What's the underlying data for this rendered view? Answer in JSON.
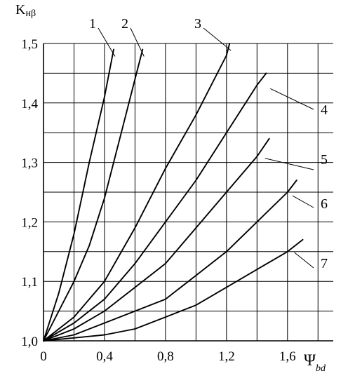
{
  "chart_data": {
    "type": "line",
    "ylabel": "Kнβ",
    "xlabel": "ψbd",
    "ylabel_main": "K",
    "ylabel_sub": "нβ",
    "xlabel_main": "Ψ",
    "xlabel_sub": "bd",
    "xlim": [
      0,
      1.9
    ],
    "ylim": [
      1.0,
      1.5
    ],
    "x_ticks": [
      0,
      0.4,
      0.8,
      1.2,
      1.6
    ],
    "x_tick_labels": [
      "0",
      "0,4",
      "0,8",
      "1,2",
      "1,6"
    ],
    "y_ticks": [
      1.0,
      1.1,
      1.2,
      1.3,
      1.4,
      1.5
    ],
    "y_tick_labels": [
      "1,0",
      "1,1",
      "1,2",
      "1,3",
      "1,4",
      "1,5"
    ],
    "grid": true,
    "series": [
      {
        "name": "1",
        "x": [
          0,
          0.1,
          0.2,
          0.3,
          0.4,
          0.46
        ],
        "y": [
          1.0,
          1.08,
          1.18,
          1.3,
          1.41,
          1.49
        ]
      },
      {
        "name": "2",
        "x": [
          0,
          0.2,
          0.3,
          0.4,
          0.5,
          0.6,
          0.65
        ],
        "y": [
          1.0,
          1.1,
          1.16,
          1.24,
          1.34,
          1.44,
          1.49
        ]
      },
      {
        "name": "3",
        "x": [
          0,
          0.2,
          0.4,
          0.6,
          0.8,
          1.0,
          1.2,
          1.22
        ],
        "y": [
          1.0,
          1.04,
          1.1,
          1.19,
          1.29,
          1.38,
          1.48,
          1.5
        ]
      },
      {
        "name": "4",
        "x": [
          0,
          0.2,
          0.4,
          0.6,
          0.8,
          1.0,
          1.2,
          1.4,
          1.46
        ],
        "y": [
          1.0,
          1.03,
          1.07,
          1.13,
          1.2,
          1.27,
          1.35,
          1.43,
          1.45
        ]
      },
      {
        "name": "5",
        "x": [
          0,
          0.2,
          0.4,
          0.6,
          0.8,
          1.0,
          1.2,
          1.4,
          1.48
        ],
        "y": [
          1.0,
          1.02,
          1.05,
          1.09,
          1.13,
          1.19,
          1.25,
          1.31,
          1.34
        ]
      },
      {
        "name": "6",
        "x": [
          0,
          0.2,
          0.4,
          0.6,
          0.8,
          1.0,
          1.2,
          1.4,
          1.6,
          1.66
        ],
        "y": [
          1.0,
          1.01,
          1.03,
          1.05,
          1.07,
          1.11,
          1.15,
          1.2,
          1.25,
          1.27
        ]
      },
      {
        "name": "7",
        "x": [
          0,
          0.2,
          0.4,
          0.6,
          0.8,
          1.0,
          1.2,
          1.4,
          1.6,
          1.7
        ],
        "y": [
          1.0,
          1.005,
          1.01,
          1.02,
          1.04,
          1.06,
          1.09,
          1.12,
          1.15,
          1.17
        ]
      }
    ]
  }
}
